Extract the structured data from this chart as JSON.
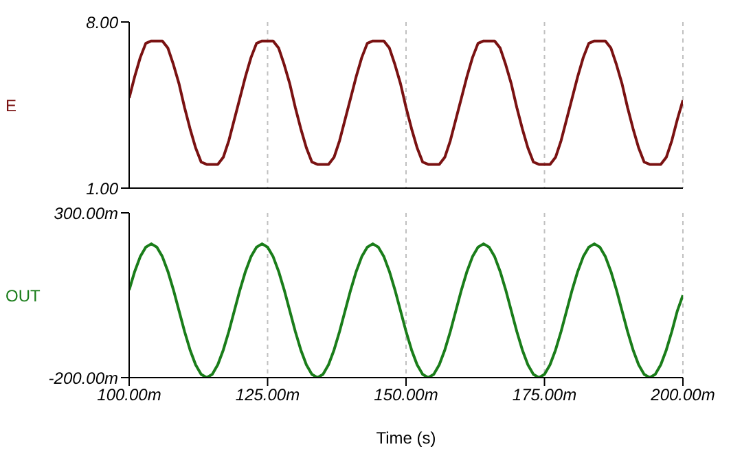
{
  "chart_data": [
    {
      "type": "line",
      "ylabel": "E",
      "x": [
        100,
        101,
        102,
        103,
        104,
        105,
        106,
        107,
        108,
        109,
        110,
        111,
        112,
        113,
        114,
        115,
        116,
        117,
        118,
        119,
        120,
        121,
        122,
        123,
        124,
        125,
        126,
        127,
        128,
        129,
        130,
        131,
        132,
        133,
        134,
        135,
        136,
        137,
        138,
        139,
        140,
        141,
        142,
        143,
        144,
        145,
        146,
        147,
        148,
        149,
        150,
        151,
        152,
        153,
        154,
        155,
        156,
        157,
        158,
        159,
        160,
        161,
        162,
        163,
        164,
        165,
        166,
        167,
        168,
        169,
        170,
        171,
        172,
        173,
        174,
        175,
        176,
        177,
        178,
        179,
        180,
        181,
        182,
        183,
        184,
        185,
        186,
        187,
        188,
        189,
        190,
        191,
        192,
        193,
        194,
        195,
        196,
        197,
        198,
        199,
        200
      ],
      "series": [
        {
          "color": "#7a1212",
          "values": [
            4.8,
            5.7,
            6.5,
            7.1,
            7.2,
            7.2,
            7.2,
            6.9,
            6.2,
            5.4,
            4.4,
            3.5,
            2.7,
            2.1,
            2.0,
            2.0,
            2.0,
            2.3,
            3.0,
            3.9,
            4.8,
            5.7,
            6.5,
            7.1,
            7.2,
            7.2,
            7.2,
            6.9,
            6.2,
            5.4,
            4.4,
            3.5,
            2.7,
            2.1,
            2.0,
            2.0,
            2.0,
            2.3,
            3.0,
            3.9,
            4.8,
            5.7,
            6.5,
            7.1,
            7.2,
            7.2,
            7.2,
            6.9,
            6.2,
            5.4,
            4.4,
            3.5,
            2.7,
            2.1,
            2.0,
            2.0,
            2.0,
            2.3,
            3.0,
            3.9,
            4.8,
            5.7,
            6.5,
            7.1,
            7.2,
            7.2,
            7.2,
            6.9,
            6.2,
            5.4,
            4.4,
            3.5,
            2.7,
            2.1,
            2.0,
            2.0,
            2.0,
            2.3,
            3.0,
            3.9,
            4.8,
            5.7,
            6.5,
            7.1,
            7.2,
            7.2,
            7.2,
            6.9,
            6.2,
            5.4,
            4.4,
            3.5,
            2.7,
            2.1,
            2.0,
            2.0,
            2.0,
            2.3,
            3.0,
            3.9,
            4.7
          ]
        }
      ],
      "xlim": [
        100,
        200
      ],
      "xticks": [
        100,
        125,
        150,
        175,
        200
      ],
      "ylim": [
        1,
        8
      ],
      "yticks": [
        {
          "value": 1,
          "label": "1.00"
        },
        {
          "value": 8,
          "label": "8.00"
        }
      ],
      "tick_labels": "y",
      "grid": "x",
      "legend": false,
      "marker": "none",
      "line_style": "solid"
    },
    {
      "type": "line",
      "ylabel": "OUT",
      "xlabel": "Time (s)",
      "x": [
        100,
        101,
        102,
        103,
        104,
        105,
        106,
        107,
        108,
        109,
        110,
        111,
        112,
        113,
        114,
        115,
        116,
        117,
        118,
        119,
        120,
        121,
        122,
        123,
        124,
        125,
        126,
        127,
        128,
        129,
        130,
        131,
        132,
        133,
        134,
        135,
        136,
        137,
        138,
        139,
        140,
        141,
        142,
        143,
        144,
        145,
        146,
        147,
        148,
        149,
        150,
        151,
        152,
        153,
        154,
        155,
        156,
        157,
        158,
        159,
        160,
        161,
        162,
        163,
        164,
        165,
        166,
        167,
        168,
        169,
        170,
        171,
        172,
        173,
        174,
        175,
        176,
        177,
        178,
        179,
        180,
        181,
        182,
        183,
        184,
        185,
        186,
        187,
        188,
        189,
        190,
        191,
        192,
        193,
        194,
        195,
        196,
        197,
        198,
        199,
        200
      ],
      "series": [
        {
          "color": "#1a7d1a",
          "values": [
            66,
            122,
            167,
            196,
            206,
            196,
            167,
            122,
            66,
            3,
            -60,
            -116,
            -161,
            -190,
            -200,
            -190,
            -161,
            -116,
            -60,
            3,
            66,
            122,
            167,
            196,
            206,
            196,
            167,
            122,
            66,
            3,
            -60,
            -116,
            -161,
            -190,
            -200,
            -190,
            -161,
            -116,
            -60,
            3,
            66,
            122,
            167,
            196,
            206,
            196,
            167,
            122,
            66,
            3,
            -60,
            -116,
            -161,
            -190,
            -200,
            -190,
            -161,
            -116,
            -60,
            3,
            66,
            122,
            167,
            196,
            206,
            196,
            167,
            122,
            66,
            3,
            -60,
            -116,
            -161,
            -190,
            -200,
            -190,
            -161,
            -116,
            -60,
            3,
            66,
            122,
            167,
            196,
            206,
            196,
            167,
            122,
            66,
            3,
            -60,
            -116,
            -161,
            -190,
            -200,
            -190,
            -161,
            -116,
            -60,
            3,
            50
          ]
        }
      ],
      "xlim": [
        100,
        200
      ],
      "xticks": [
        {
          "value": 100,
          "label": "100.00m"
        },
        {
          "value": 125,
          "label": "125.00m"
        },
        {
          "value": 150,
          "label": "150.00m"
        },
        {
          "value": 175,
          "label": "175.00m"
        },
        {
          "value": 200,
          "label": "200.00m"
        }
      ],
      "ylim": [
        -200,
        300
      ],
      "yticks": [
        {
          "value": -200,
          "label": "-200.00m"
        },
        {
          "value": 300,
          "label": "300.00m"
        }
      ],
      "grid": "x",
      "legend": false,
      "marker": "none",
      "line_style": "solid"
    }
  ]
}
